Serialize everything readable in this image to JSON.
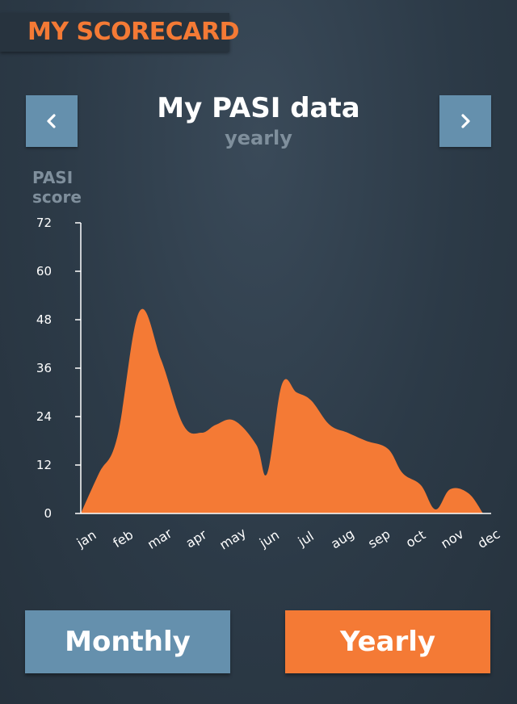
{
  "header": {
    "title": "MY SCORECARD"
  },
  "nav": {
    "prev_icon": "chevron-left-icon",
    "next_icon": "chevron-right-icon"
  },
  "colors": {
    "accent": "#f47a35",
    "button_blue": "#6590ad",
    "muted_text": "#7f8f9c",
    "axis": "#ffffff"
  },
  "chart_data": {
    "type": "area",
    "title": "My PASI data",
    "subtitle": "yearly",
    "ylabel_lines": [
      "PASI",
      "score"
    ],
    "xlabel": "",
    "ylim": [
      0,
      72
    ],
    "yticks": [
      0,
      12,
      24,
      36,
      48,
      60,
      72
    ],
    "categories": [
      "jan",
      "feb",
      "mar",
      "apr",
      "may",
      "jun",
      "jul",
      "aug",
      "sep",
      "oct",
      "nov",
      "dec"
    ],
    "x": [
      0,
      0.5,
      1,
      1.6,
      2.2,
      2.8,
      3.3,
      3.7,
      4.2,
      4.8,
      5.1,
      5.5,
      5.9,
      6.3,
      6.8,
      7.3,
      7.8,
      8.4,
      8.8,
      9.3,
      9.7,
      10.1,
      10.6,
      11
    ],
    "y": [
      0,
      10,
      19,
      50,
      38,
      22,
      20,
      22,
      23,
      17,
      10,
      32,
      30,
      28,
      22,
      20,
      18,
      16,
      10,
      7,
      1,
      6,
      5,
      0
    ],
    "grid": false,
    "fill_color": "#f47a35"
  },
  "buttons": {
    "monthly_label": "Monthly",
    "yearly_label": "Yearly"
  }
}
